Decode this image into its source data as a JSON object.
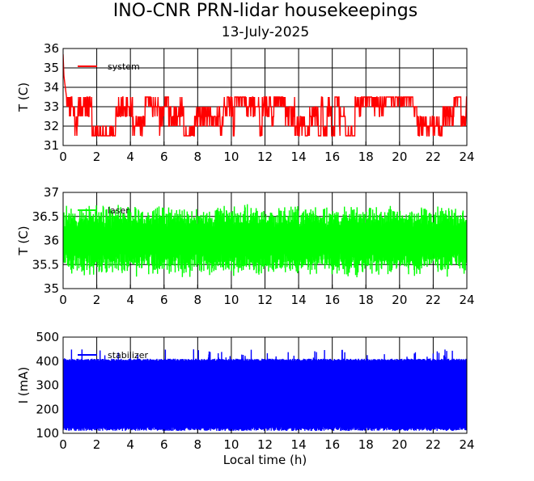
{
  "header": {
    "title": "INO-CNR PRN-lidar housekeepings",
    "subtitle": "13-July-2025"
  },
  "chart_data": [
    {
      "type": "line",
      "ylabel": "T (C)",
      "xlabel": "",
      "xlim": [
        0,
        24
      ],
      "ylim": [
        31,
        36
      ],
      "xticks": [
        0,
        2,
        4,
        6,
        8,
        10,
        12,
        14,
        16,
        18,
        20,
        22,
        24
      ],
      "yticks": [
        31,
        32,
        33,
        34,
        35,
        36
      ],
      "grid": true,
      "legend_position": "top-left",
      "series": [
        {
          "name": "system",
          "color": "#ff0000",
          "start": [
            [
              0.0,
              35.7
            ],
            [
              0.05,
              34.6
            ],
            [
              0.1,
              34.2
            ],
            [
              0.2,
              33.5
            ]
          ],
          "levels": [
            31.5,
            32.0,
            32.5,
            33.0,
            33.5
          ],
          "level_center": 32.5,
          "level_spread": 1,
          "sample_step_h": 0.02
        }
      ]
    },
    {
      "type": "line",
      "ylabel": "T (C)",
      "xlabel": "",
      "xlim": [
        0,
        24
      ],
      "ylim": [
        35,
        37
      ],
      "xticks": [
        0,
        2,
        4,
        6,
        8,
        10,
        12,
        14,
        16,
        18,
        20,
        22,
        24
      ],
      "yticks": [
        35,
        35.5,
        36,
        36.5,
        37
      ],
      "grid": true,
      "legend_position": "top-left",
      "series": [
        {
          "name": "laser",
          "color": "#00ff00",
          "mean": 36.0,
          "amplitude_range": [
            0.35,
            0.78
          ],
          "sample_step_h": 0.0125
        }
      ]
    },
    {
      "type": "line",
      "ylabel": "I (mA)",
      "xlabel": "Local time (h)",
      "xlim": [
        0,
        24
      ],
      "ylim": [
        100,
        500
      ],
      "xticks": [
        0,
        2,
        4,
        6,
        8,
        10,
        12,
        14,
        16,
        18,
        20,
        22,
        24
      ],
      "yticks": [
        100,
        200,
        300,
        400,
        500
      ],
      "grid": true,
      "legend_position": "top-left",
      "series": [
        {
          "name": "stabilizer",
          "color": "#0000ff",
          "band": [
            110,
            410
          ],
          "spike_max": 450,
          "sample_step_h": 0.01
        }
      ]
    }
  ]
}
